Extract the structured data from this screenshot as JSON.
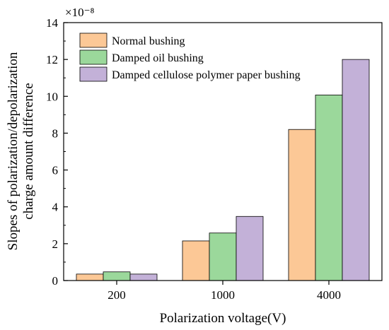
{
  "chart_data": {
    "type": "bar",
    "categories": [
      "200",
      "1000",
      "4000"
    ],
    "series": [
      {
        "name": "Normal bushing",
        "color": "#fcc896",
        "values": [
          0.35,
          2.15,
          8.2
        ]
      },
      {
        "name": "Damped oil bushing",
        "color": "#9bd89b",
        "values": [
          0.47,
          2.58,
          10.07
        ]
      },
      {
        "name": "Damped cellulose polymer paper bushing",
        "color": "#c3b1d8",
        "values": [
          0.35,
          3.48,
          12.0
        ]
      }
    ],
    "xlabel": "Polarization voltage(V)",
    "ylabel_line1": "Slopes of polarization/depolarization",
    "ylabel_line2": "charge amount difference",
    "y_multiplier": "×10⁻⁸",
    "ylim": [
      0,
      14
    ],
    "yticks": [
      "0",
      "2",
      "4",
      "6",
      "8",
      "10",
      "12",
      "14"
    ],
    "legend_position": "top-left",
    "grid": false
  }
}
